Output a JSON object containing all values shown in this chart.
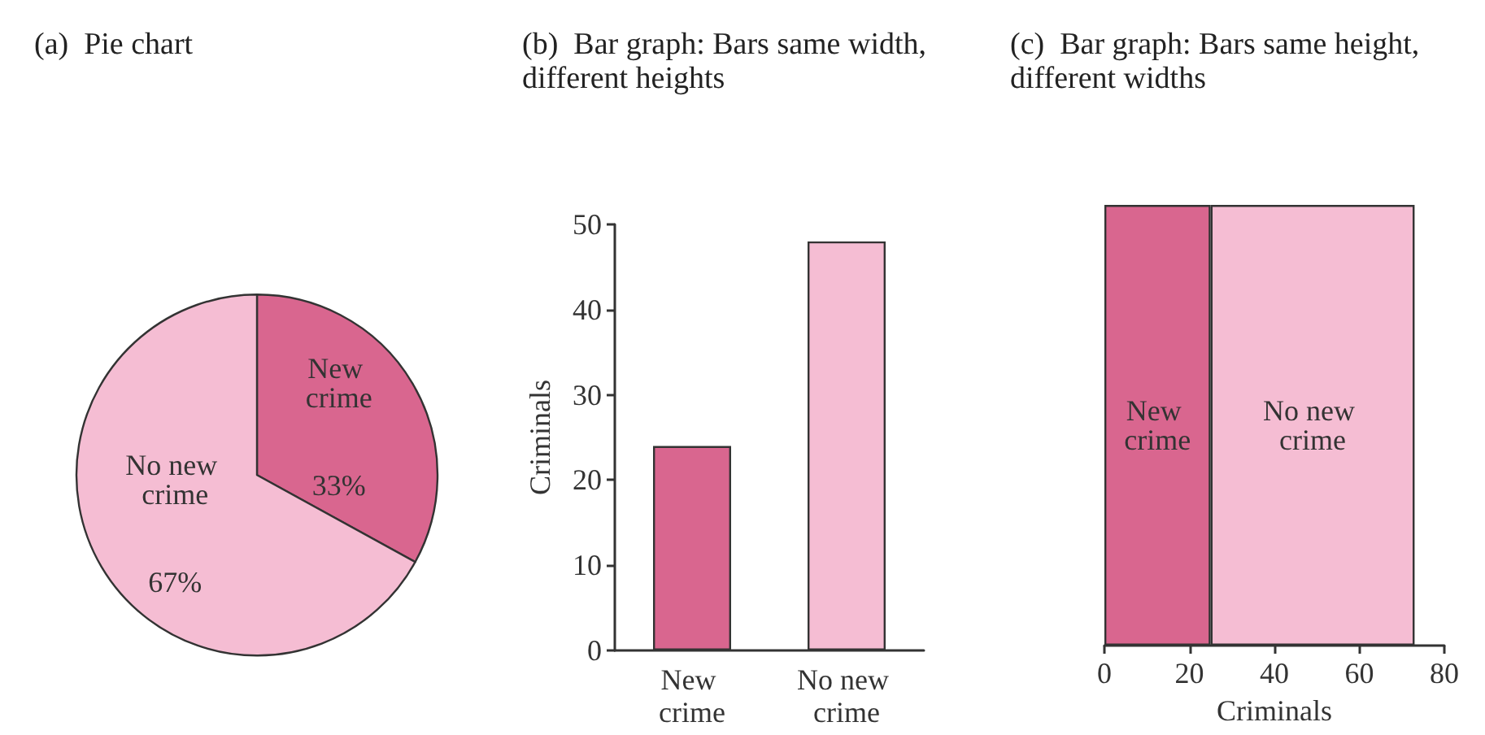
{
  "chart_data": [
    {
      "type": "pie",
      "title": "(a)  Pie chart",
      "categories": [
        "New crime",
        "No new crime"
      ],
      "values": [
        33,
        67
      ],
      "colors": [
        "#d9668f",
        "#f5bdd3"
      ],
      "value_labels": [
        "33%",
        "67%"
      ],
      "legend": false
    },
    {
      "type": "bar",
      "title": "(b)  Bar graph: Bars same width, different heights",
      "categories": [
        "New crime",
        "No new crime"
      ],
      "values": [
        24,
        48
      ],
      "colors": [
        "#d9668f",
        "#f5bdd3"
      ],
      "ylabel": "Criminals",
      "ylim": [
        0,
        50
      ],
      "yticks": [
        0,
        10,
        20,
        30,
        40,
        50
      ],
      "grid": false,
      "legend": false
    },
    {
      "type": "bar",
      "title": "(c)  Bar graph: Bars same height, different widths",
      "orientation": "horizontal",
      "stacked": true,
      "categories": [
        null
      ],
      "xlabel": "Criminals",
      "xlim": [
        0,
        80
      ],
      "xticks": [
        0,
        20,
        40,
        60,
        80
      ],
      "grid": false,
      "legend": false,
      "series": [
        {
          "name": "New crime",
          "color": "#d9668f",
          "values": [
            25
          ]
        },
        {
          "name": "No new crime",
          "color": "#f5bdd3",
          "values": [
            48
          ]
        }
      ]
    }
  ]
}
